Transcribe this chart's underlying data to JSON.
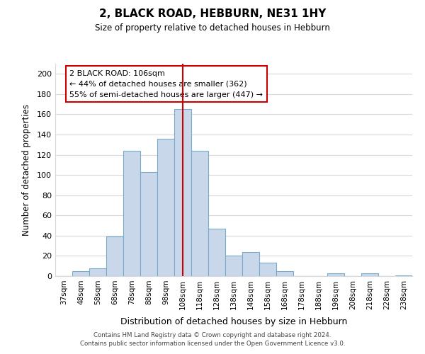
{
  "title": "2, BLACK ROAD, HEBBURN, NE31 1HY",
  "subtitle": "Size of property relative to detached houses in Hebburn",
  "xlabel": "Distribution of detached houses by size in Hebburn",
  "ylabel": "Number of detached properties",
  "bin_labels": [
    "37sqm",
    "48sqm",
    "58sqm",
    "68sqm",
    "78sqm",
    "88sqm",
    "98sqm",
    "108sqm",
    "118sqm",
    "128sqm",
    "138sqm",
    "148sqm",
    "158sqm",
    "168sqm",
    "178sqm",
    "188sqm",
    "198sqm",
    "208sqm",
    "218sqm",
    "228sqm",
    "238sqm"
  ],
  "bar_values": [
    0,
    5,
    8,
    39,
    124,
    103,
    136,
    165,
    124,
    47,
    20,
    24,
    13,
    5,
    0,
    0,
    3,
    0,
    3,
    0,
    1
  ],
  "bar_color": "#c8d8ea",
  "bar_edge_color": "#7aaac8",
  "vline_x": 7,
  "vline_color": "#cc0000",
  "ylim": [
    0,
    210
  ],
  "yticks": [
    0,
    20,
    40,
    60,
    80,
    100,
    120,
    140,
    160,
    180,
    200
  ],
  "annotation_title": "2 BLACK ROAD: 106sqm",
  "annotation_line1": "← 44% of detached houses are smaller (362)",
  "annotation_line2": "55% of semi-detached houses are larger (447) →",
  "footer1": "Contains HM Land Registry data © Crown copyright and database right 2024.",
  "footer2": "Contains public sector information licensed under the Open Government Licence v3.0.",
  "bg_color": "#ffffff",
  "grid_color": "#d8d8d8"
}
